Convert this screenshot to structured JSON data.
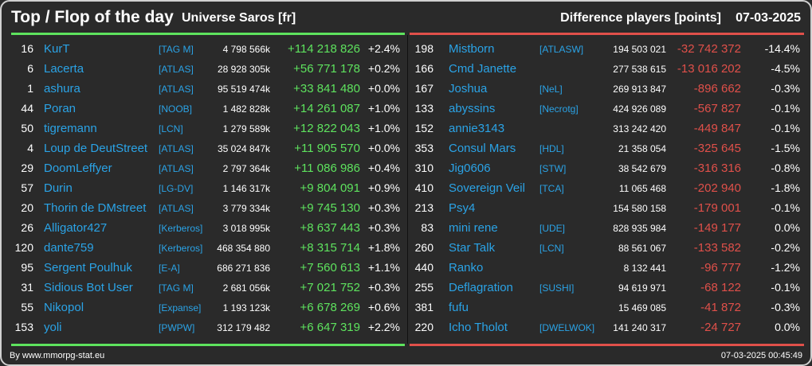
{
  "header": {
    "title": "Top / Flop of the day",
    "universe": "Universe Saros [fr]",
    "diff_label": "Difference players [points]",
    "date": "07-03-2025"
  },
  "colors": {
    "gain": "#5ee35e",
    "loss": "#e0504a",
    "link": "#2aa3e6"
  },
  "top": [
    {
      "rank": "16",
      "name": "KurT",
      "ally": "[TAG M]",
      "points": "4 798 566k",
      "delta": "+114 218 826",
      "pct": "+2.4%"
    },
    {
      "rank": "6",
      "name": "Lacerta",
      "ally": "[ATLAS]",
      "points": "28 928 305k",
      "delta": "+56 771 178",
      "pct": "+0.2%"
    },
    {
      "rank": "1",
      "name": "ashura",
      "ally": "[ATLAS]",
      "points": "95 519 474k",
      "delta": "+33 841 480",
      "pct": "+0.0%"
    },
    {
      "rank": "44",
      "name": "Poran",
      "ally": "[NOOB]",
      "points": "1 482 828k",
      "delta": "+14 261 087",
      "pct": "+1.0%"
    },
    {
      "rank": "50",
      "name": "tigremann",
      "ally": "[LCN]",
      "points": "1 279 589k",
      "delta": "+12 822 043",
      "pct": "+1.0%"
    },
    {
      "rank": "4",
      "name": "Loup de DeutStreet",
      "ally": "[ATLAS]",
      "points": "35 024 847k",
      "delta": "+11 905 570",
      "pct": "+0.0%"
    },
    {
      "rank": "29",
      "name": "DoomLeffyer",
      "ally": "[ATLAS]",
      "points": "2 797 364k",
      "delta": "+11 086 986",
      "pct": "+0.4%"
    },
    {
      "rank": "57",
      "name": "Durin",
      "ally": "[LG-DV]",
      "points": "1 146 317k",
      "delta": "+9 804 091",
      "pct": "+0.9%"
    },
    {
      "rank": "20",
      "name": "Thorin de DMstreet",
      "ally": "[ATLAS]",
      "points": "3 779 334k",
      "delta": "+9 745 130",
      "pct": "+0.3%"
    },
    {
      "rank": "26",
      "name": "Alligator427",
      "ally": "[Kerberos]",
      "points": "3 018 995k",
      "delta": "+8 637 443",
      "pct": "+0.3%"
    },
    {
      "rank": "120",
      "name": "dante759",
      "ally": "[Kerberos]",
      "points": "468 354 880",
      "delta": "+8 315 714",
      "pct": "+1.8%"
    },
    {
      "rank": "95",
      "name": "Sergent Poulhuk",
      "ally": "[E-A]",
      "points": "686 271 836",
      "delta": "+7 560 613",
      "pct": "+1.1%"
    },
    {
      "rank": "31",
      "name": "Sidious Bot User",
      "ally": "[TAG M]",
      "points": "2 681 056k",
      "delta": "+7 021 752",
      "pct": "+0.3%"
    },
    {
      "rank": "55",
      "name": "Nikopol",
      "ally": "[Expanse]",
      "points": "1 193 123k",
      "delta": "+6 678 269",
      "pct": "+0.6%"
    },
    {
      "rank": "153",
      "name": "yoli",
      "ally": "[PWPW]",
      "points": "312 179 482",
      "delta": "+6 647 319",
      "pct": "+2.2%"
    }
  ],
  "flop": [
    {
      "rank": "198",
      "name": "Mistborn",
      "ally": "[ATLASW]",
      "points": "194 503 021",
      "delta": "-32 742 372",
      "pct": "-14.4%"
    },
    {
      "rank": "166",
      "name": "Cmd Janette",
      "ally": "",
      "points": "277 538 615",
      "delta": "-13 016 202",
      "pct": "-4.5%"
    },
    {
      "rank": "167",
      "name": "Joshua",
      "ally": "[NeL]",
      "points": "269 913 847",
      "delta": "-896 662",
      "pct": "-0.3%"
    },
    {
      "rank": "133",
      "name": "abyssins",
      "ally": "[Necrotg]",
      "points": "424 926 089",
      "delta": "-567 827",
      "pct": "-0.1%"
    },
    {
      "rank": "152",
      "name": "annie3143",
      "ally": "",
      "points": "313 242 420",
      "delta": "-449 847",
      "pct": "-0.1%"
    },
    {
      "rank": "353",
      "name": "Consul Mars",
      "ally": "[HDL]",
      "points": "21 358 054",
      "delta": "-325 645",
      "pct": "-1.5%"
    },
    {
      "rank": "310",
      "name": "Jig0606",
      "ally": "[STW]",
      "points": "38 542 679",
      "delta": "-316 316",
      "pct": "-0.8%"
    },
    {
      "rank": "410",
      "name": "Sovereign Veil",
      "ally": "[TCA]",
      "points": "11 065 468",
      "delta": "-202 940",
      "pct": "-1.8%"
    },
    {
      "rank": "213",
      "name": "Psy4",
      "ally": "",
      "points": "154 580 158",
      "delta": "-179 001",
      "pct": "-0.1%"
    },
    {
      "rank": "83",
      "name": "mini rene",
      "ally": "[UDE]",
      "points": "828 935 984",
      "delta": "-149 177",
      "pct": "0.0%"
    },
    {
      "rank": "260",
      "name": "Star Talk",
      "ally": "[LCN]",
      "points": "88 561 067",
      "delta": "-133 582",
      "pct": "-0.2%"
    },
    {
      "rank": "440",
      "name": "Ranko",
      "ally": "",
      "points": "8 132 441",
      "delta": "-96 777",
      "pct": "-1.2%"
    },
    {
      "rank": "255",
      "name": "Deflagration",
      "ally": "[SUSHI]",
      "points": "94 619 971",
      "delta": "-68 122",
      "pct": "-0.1%"
    },
    {
      "rank": "381",
      "name": "fufu",
      "ally": "",
      "points": "15 469 085",
      "delta": "-41 872",
      "pct": "-0.3%"
    },
    {
      "rank": "220",
      "name": "Icho Tholot",
      "ally": "[DWELWOK]",
      "points": "141 240 317",
      "delta": "-24 727",
      "pct": "0.0%"
    }
  ],
  "footer": {
    "source": "By www.mmorpg-stat.eu",
    "timestamp": "07-03-2025 00:45:49"
  }
}
